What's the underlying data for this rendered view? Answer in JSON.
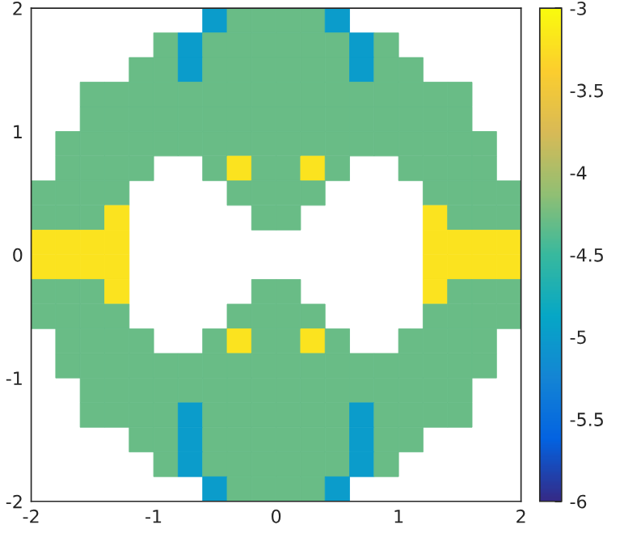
{
  "chart_data": {
    "type": "scatter",
    "marker": "square",
    "xlim": [
      -2,
      2
    ],
    "ylim": [
      -2,
      2
    ],
    "xticks": [
      -2,
      -1,
      0,
      1,
      2
    ],
    "yticks": [
      -2,
      -1,
      0,
      1,
      2
    ],
    "clim": [
      -6,
      -3
    ],
    "cticks": [
      -6,
      -5.5,
      -5,
      -4.5,
      -4,
      -3.5,
      -3
    ],
    "series": [
      {
        "x": [
          -0.5,
          -0.3,
          -0.1,
          0.1,
          0.3,
          0.5
        ],
        "values": [
          1.9,
          1.9,
          1.9,
          1.9,
          1.9,
          1.9
        ],
        "cvalues": [
          -5,
          -4.3,
          -4.3,
          -4.3,
          -4.3,
          -5
        ],
        "colors": [
          "#0b9ccb",
          "#68bc87",
          "#68bc87",
          "#68bc87",
          "#68bc87",
          "#0b9ccb"
        ]
      },
      {
        "x": [
          -0.9,
          -0.7,
          -0.5,
          -0.3,
          -0.1,
          0.1,
          0.3,
          0.5,
          0.7,
          0.9
        ],
        "values": [
          1.7,
          1.7,
          1.7,
          1.7,
          1.7,
          1.7,
          1.7,
          1.7,
          1.7,
          1.7
        ],
        "cvalues": [
          -4.3,
          -5,
          -4.3,
          -4.3,
          -4.3,
          -4.3,
          -4.3,
          -4.3,
          -5,
          -4.3
        ],
        "colors": [
          "#68bc87",
          "#0b9ccb",
          "#68bc87",
          "#68bc87",
          "#68bc87",
          "#68bc87",
          "#68bc87",
          "#68bc87",
          "#0b9ccb",
          "#68bc87"
        ]
      },
      {
        "x": [
          -1.1,
          -0.9,
          -0.7,
          -0.5,
          -0.3,
          -0.1,
          0.1,
          0.3,
          0.5,
          0.7,
          0.9,
          1.1
        ],
        "values": [
          1.5,
          1.5,
          1.5,
          1.5,
          1.5,
          1.5,
          1.5,
          1.5,
          1.5,
          1.5,
          1.5,
          1.5
        ],
        "cvalues": [
          -4.3,
          -4.3,
          -5,
          -4.3,
          -4.3,
          -4.3,
          -4.3,
          -4.3,
          -4.3,
          -5,
          -4.3,
          -4.3
        ],
        "colors": [
          "#68bc87",
          "#68bc87",
          "#0b9ccb",
          "#68bc87",
          "#68bc87",
          "#68bc87",
          "#68bc87",
          "#68bc87",
          "#68bc87",
          "#0b9ccb",
          "#68bc87",
          "#68bc87"
        ]
      },
      {
        "x": [
          -1.5,
          -1.3,
          -1.1,
          -0.9,
          -0.7,
          -0.5,
          -0.3,
          -0.1,
          0.1,
          0.3,
          0.5,
          0.7,
          0.9,
          1.1,
          1.3,
          1.5
        ],
        "values": [
          1.3,
          1.3,
          1.3,
          1.3,
          1.3,
          1.3,
          1.3,
          1.3,
          1.3,
          1.3,
          1.3,
          1.3,
          1.3,
          1.3,
          1.3,
          1.3
        ],
        "cvalues": [
          -4.3,
          -4.3,
          -4.3,
          -4.3,
          -4.3,
          -4.3,
          -4.3,
          -4.3,
          -4.3,
          -4.3,
          -4.3,
          -4.3,
          -4.3,
          -4.3,
          -4.3,
          -4.3
        ],
        "color": "#68bc87"
      },
      {
        "x": [
          -1.5,
          -1.3,
          -1.1,
          -0.9,
          -0.7,
          -0.5,
          -0.3,
          -0.1,
          0.1,
          0.3,
          0.5,
          0.7,
          0.9,
          1.1,
          1.3,
          1.5
        ],
        "values": [
          1.1,
          1.1,
          1.1,
          1.1,
          1.1,
          1.1,
          1.1,
          1.1,
          1.1,
          1.1,
          1.1,
          1.1,
          1.1,
          1.1,
          1.1,
          1.1
        ],
        "cvalues": [
          -4.3,
          -4.3,
          -4.3,
          -4.3,
          -4.3,
          -4.3,
          -4.3,
          -4.3,
          -4.3,
          -4.3,
          -4.3,
          -4.3,
          -4.3,
          -4.3,
          -4.3,
          -4.3
        ],
        "color": "#68bc87"
      },
      {
        "x": [
          -1.7,
          -1.5,
          -1.3,
          -1.1,
          -0.9,
          -0.7,
          -0.5,
          -0.3,
          -0.1,
          0.1,
          0.3,
          0.5,
          0.7,
          0.9,
          1.1,
          1.3,
          1.5,
          1.7
        ],
        "values": [
          0.9,
          0.9,
          0.9,
          0.9,
          0.9,
          0.9,
          0.9,
          0.9,
          0.9,
          0.9,
          0.9,
          0.9,
          0.9,
          0.9,
          0.9,
          0.9,
          0.9,
          0.9
        ],
        "cvalues": [
          -4.3,
          -4.3,
          -4.3,
          -4.3,
          -4.3,
          -4.3,
          -4.3,
          -4.3,
          -4.3,
          -4.3,
          -4.3,
          -4.3,
          -4.3,
          -4.3,
          -4.3,
          -4.3,
          -4.3,
          -4.3
        ],
        "color": "#68bc87"
      },
      {
        "x": [
          -1.7,
          -1.5,
          -1.3,
          -1.1,
          -0.5,
          -0.3,
          -0.1,
          0.1,
          0.3,
          0.5,
          1.1,
          1.3,
          1.5,
          1.7
        ],
        "values": [
          0.7,
          0.7,
          0.7,
          0.7,
          0.7,
          0.7,
          0.7,
          0.7,
          0.7,
          0.7,
          0.7,
          0.7,
          0.7,
          0.7
        ],
        "cvalues": [
          -4.3,
          -4.3,
          -4.3,
          -4.3,
          -4.3,
          -3.2,
          -4.3,
          -4.3,
          -3.2,
          -4.3,
          -4.3,
          -4.3,
          -4.3,
          -4.3
        ],
        "colors": [
          "#68bc87",
          "#68bc87",
          "#68bc87",
          "#68bc87",
          "#68bc87",
          "#fbe31f",
          "#68bc87",
          "#68bc87",
          "#fbe31f",
          "#68bc87",
          "#68bc87",
          "#68bc87",
          "#68bc87",
          "#68bc87"
        ]
      },
      {
        "x": [
          -1.9,
          -1.7,
          -1.5,
          -1.3,
          -0.3,
          -0.1,
          0.1,
          0.3,
          1.3,
          1.5,
          1.7,
          1.9
        ],
        "values": [
          0.5,
          0.5,
          0.5,
          0.5,
          0.5,
          0.5,
          0.5,
          0.5,
          0.5,
          0.5,
          0.5,
          0.5
        ],
        "cvalues": [
          -4.3,
          -4.3,
          -4.3,
          -4.3,
          -4.3,
          -4.3,
          -4.3,
          -4.3,
          -4.3,
          -4.3,
          -4.3,
          -4.3
        ],
        "color": "#68bc87"
      },
      {
        "x": [
          -1.9,
          -1.7,
          -1.5,
          -1.3,
          -0.1,
          0.1,
          1.3,
          1.5,
          1.7,
          1.9
        ],
        "values": [
          0.3,
          0.3,
          0.3,
          0.3,
          0.3,
          0.3,
          0.3,
          0.3,
          0.3,
          0.3
        ],
        "cvalues": [
          -4.3,
          -4.3,
          -4.3,
          -3.2,
          -4.3,
          -4.3,
          -3.2,
          -4.3,
          -4.3,
          -4.3
        ],
        "colors": [
          "#68bc87",
          "#68bc87",
          "#68bc87",
          "#fbe31f",
          "#68bc87",
          "#68bc87",
          "#fbe31f",
          "#68bc87",
          "#68bc87",
          "#68bc87"
        ]
      },
      {
        "x": [
          -1.9,
          -1.7,
          -1.5,
          -1.3,
          1.3,
          1.5,
          1.7,
          1.9
        ],
        "values": [
          0.1,
          0.1,
          0.1,
          0.1,
          0.1,
          0.1,
          0.1,
          0.1
        ],
        "cvalues": [
          -3.2,
          -3.2,
          -3.2,
          -3.2,
          -3.2,
          -3.2,
          -3.2,
          -3.2
        ],
        "color": "#fbe31f"
      },
      {
        "x": [
          -1.9,
          -1.7,
          -1.5,
          -1.3,
          1.3,
          1.5,
          1.7,
          1.9
        ],
        "values": [
          -0.1,
          -0.1,
          -0.1,
          -0.1,
          -0.1,
          -0.1,
          -0.1,
          -0.1
        ],
        "cvalues": [
          -3.2,
          -3.2,
          -3.2,
          -3.2,
          -3.2,
          -3.2,
          -3.2,
          -3.2
        ],
        "color": "#fbe31f"
      },
      {
        "x": [
          -1.9,
          -1.7,
          -1.5,
          -1.3,
          -0.1,
          0.1,
          1.3,
          1.5,
          1.7,
          1.9
        ],
        "values": [
          -0.3,
          -0.3,
          -0.3,
          -0.3,
          -0.3,
          -0.3,
          -0.3,
          -0.3,
          -0.3,
          -0.3
        ],
        "cvalues": [
          -4.3,
          -4.3,
          -4.3,
          -3.2,
          -4.3,
          -4.3,
          -3.2,
          -4.3,
          -4.3,
          -4.3
        ],
        "colors": [
          "#68bc87",
          "#68bc87",
          "#68bc87",
          "#fbe31f",
          "#68bc87",
          "#68bc87",
          "#fbe31f",
          "#68bc87",
          "#68bc87",
          "#68bc87"
        ]
      },
      {
        "x": [
          -1.9,
          -1.7,
          -1.5,
          -1.3,
          -0.3,
          -0.1,
          0.1,
          0.3,
          1.3,
          1.5,
          1.7,
          1.9
        ],
        "values": [
          -0.5,
          -0.5,
          -0.5,
          -0.5,
          -0.5,
          -0.5,
          -0.5,
          -0.5,
          -0.5,
          -0.5,
          -0.5,
          -0.5
        ],
        "cvalues": [
          -4.3,
          -4.3,
          -4.3,
          -4.3,
          -4.3,
          -4.3,
          -4.3,
          -4.3,
          -4.3,
          -4.3,
          -4.3,
          -4.3
        ],
        "color": "#68bc87"
      },
      {
        "x": [
          -1.7,
          -1.5,
          -1.3,
          -1.1,
          -0.5,
          -0.3,
          -0.1,
          0.1,
          0.3,
          0.5,
          1.1,
          1.3,
          1.5,
          1.7
        ],
        "values": [
          -0.7,
          -0.7,
          -0.7,
          -0.7,
          -0.7,
          -0.7,
          -0.7,
          -0.7,
          -0.7,
          -0.7,
          -0.7,
          -0.7,
          -0.7,
          -0.7
        ],
        "cvalues": [
          -4.3,
          -4.3,
          -4.3,
          -4.3,
          -4.3,
          -3.2,
          -4.3,
          -4.3,
          -3.2,
          -4.3,
          -4.3,
          -4.3,
          -4.3,
          -4.3
        ],
        "colors": [
          "#68bc87",
          "#68bc87",
          "#68bc87",
          "#68bc87",
          "#68bc87",
          "#fbe31f",
          "#68bc87",
          "#68bc87",
          "#fbe31f",
          "#68bc87",
          "#68bc87",
          "#68bc87",
          "#68bc87",
          "#68bc87"
        ]
      },
      {
        "x": [
          -1.7,
          -1.5,
          -1.3,
          -1.1,
          -0.9,
          -0.7,
          -0.5,
          -0.3,
          -0.1,
          0.1,
          0.3,
          0.5,
          0.7,
          0.9,
          1.1,
          1.3,
          1.5,
          1.7
        ],
        "values": [
          -0.9,
          -0.9,
          -0.9,
          -0.9,
          -0.9,
          -0.9,
          -0.9,
          -0.9,
          -0.9,
          -0.9,
          -0.9,
          -0.9,
          -0.9,
          -0.9,
          -0.9,
          -0.9,
          -0.9,
          -0.9
        ],
        "cvalues": [
          -4.3,
          -4.3,
          -4.3,
          -4.3,
          -4.3,
          -4.3,
          -4.3,
          -4.3,
          -4.3,
          -4.3,
          -4.3,
          -4.3,
          -4.3,
          -4.3,
          -4.3,
          -4.3,
          -4.3,
          -4.3
        ],
        "color": "#68bc87"
      },
      {
        "x": [
          -1.5,
          -1.3,
          -1.1,
          -0.9,
          -0.7,
          -0.5,
          -0.3,
          -0.1,
          0.1,
          0.3,
          0.5,
          0.7,
          0.9,
          1.1,
          1.3,
          1.5
        ],
        "values": [
          -1.1,
          -1.1,
          -1.1,
          -1.1,
          -1.1,
          -1.1,
          -1.1,
          -1.1,
          -1.1,
          -1.1,
          -1.1,
          -1.1,
          -1.1,
          -1.1,
          -1.1,
          -1.1
        ],
        "cvalues": [
          -4.3,
          -4.3,
          -4.3,
          -4.3,
          -4.3,
          -4.3,
          -4.3,
          -4.3,
          -4.3,
          -4.3,
          -4.3,
          -4.3,
          -4.3,
          -4.3,
          -4.3,
          -4.3
        ],
        "color": "#68bc87"
      },
      {
        "x": [
          -1.5,
          -1.3,
          -1.1,
          -0.9,
          -0.7,
          -0.5,
          -0.3,
          -0.1,
          0.1,
          0.3,
          0.5,
          0.7,
          0.9,
          1.1,
          1.3,
          1.5
        ],
        "values": [
          -1.3,
          -1.3,
          -1.3,
          -1.3,
          -1.3,
          -1.3,
          -1.3,
          -1.3,
          -1.3,
          -1.3,
          -1.3,
          -1.3,
          -1.3,
          -1.3,
          -1.3,
          -1.3
        ],
        "cvalues": [
          -4.3,
          -4.3,
          -4.3,
          -4.3,
          -5,
          -4.3,
          -4.3,
          -4.3,
          -4.3,
          -4.3,
          -4.3,
          -5,
          -4.3,
          -4.3,
          -4.3,
          -4.3
        ],
        "colors": [
          "#68bc87",
          "#68bc87",
          "#68bc87",
          "#68bc87",
          "#0b9ccb",
          "#68bc87",
          "#68bc87",
          "#68bc87",
          "#68bc87",
          "#68bc87",
          "#68bc87",
          "#0b9ccb",
          "#68bc87",
          "#68bc87",
          "#68bc87",
          "#68bc87"
        ]
      },
      {
        "x": [
          -1.1,
          -0.9,
          -0.7,
          -0.5,
          -0.3,
          -0.1,
          0.1,
          0.3,
          0.5,
          0.7,
          0.9,
          1.1
        ],
        "values": [
          -1.5,
          -1.5,
          -1.5,
          -1.5,
          -1.5,
          -1.5,
          -1.5,
          -1.5,
          -1.5,
          -1.5,
          -1.5,
          -1.5
        ],
        "cvalues": [
          -4.3,
          -4.3,
          -5,
          -4.3,
          -4.3,
          -4.3,
          -4.3,
          -4.3,
          -4.3,
          -5,
          -4.3,
          -4.3
        ],
        "colors": [
          "#68bc87",
          "#68bc87",
          "#0b9ccb",
          "#68bc87",
          "#68bc87",
          "#68bc87",
          "#68bc87",
          "#68bc87",
          "#68bc87",
          "#0b9ccb",
          "#68bc87",
          "#68bc87"
        ]
      },
      {
        "x": [
          -0.9,
          -0.7,
          -0.5,
          -0.3,
          -0.1,
          0.1,
          0.3,
          0.5,
          0.7,
          0.9
        ],
        "values": [
          -1.7,
          -1.7,
          -1.7,
          -1.7,
          -1.7,
          -1.7,
          -1.7,
          -1.7,
          -1.7,
          -1.7
        ],
        "cvalues": [
          -4.3,
          -5,
          -4.3,
          -4.3,
          -4.3,
          -4.3,
          -4.3,
          -4.3,
          -5,
          -4.3
        ],
        "colors": [
          "#68bc87",
          "#0b9ccb",
          "#68bc87",
          "#68bc87",
          "#68bc87",
          "#68bc87",
          "#68bc87",
          "#68bc87",
          "#0b9ccb",
          "#68bc87"
        ]
      },
      {
        "x": [
          -0.5,
          -0.3,
          -0.1,
          0.1,
          0.3,
          0.5
        ],
        "values": [
          -1.9,
          -1.9,
          -1.9,
          -1.9,
          -1.9,
          -1.9
        ],
        "cvalues": [
          -5,
          -4.3,
          -4.3,
          -4.3,
          -4.3,
          -5
        ],
        "colors": [
          "#0b9ccb",
          "#68bc87",
          "#68bc87",
          "#68bc87",
          "#68bc87",
          "#0b9ccb"
        ]
      }
    ]
  }
}
